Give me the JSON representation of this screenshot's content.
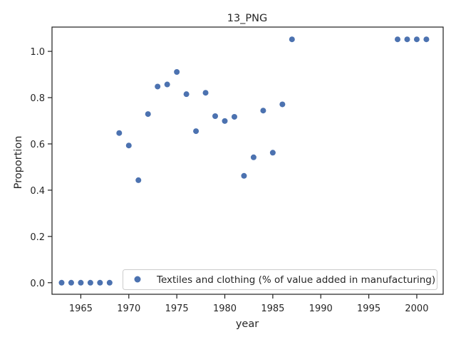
{
  "chart_data": {
    "type": "scatter",
    "title": "13_PNG",
    "xlabel": "year",
    "ylabel": "Proportion",
    "xlim": [
      1962.0,
      2002.75
    ],
    "ylim": [
      -0.05,
      1.105
    ],
    "xticks": [
      1965,
      1970,
      1975,
      1980,
      1985,
      1990,
      1995,
      2000
    ],
    "yticks": [
      0.0,
      0.2,
      0.4,
      0.6,
      0.8,
      1.0
    ],
    "xtick_labels": [
      "1965",
      "1970",
      "1975",
      "1980",
      "1985",
      "1990",
      "1995",
      "2000"
    ],
    "ytick_labels": [
      "0.0",
      "0.2",
      "0.4",
      "0.6",
      "0.8",
      "1.0"
    ],
    "grid": false,
    "legend_position": "lower-right",
    "series": [
      {
        "name": "Textiles and clothing (% of value added in manufacturing)",
        "color": "#4c72b0",
        "points": [
          {
            "x": 1963,
            "y": 0.0
          },
          {
            "x": 1964,
            "y": 0.0
          },
          {
            "x": 1965,
            "y": 0.0
          },
          {
            "x": 1966,
            "y": 0.0
          },
          {
            "x": 1967,
            "y": 0.0
          },
          {
            "x": 1968,
            "y": 0.0
          },
          {
            "x": 1969,
            "y": 0.647
          },
          {
            "x": 1970,
            "y": 0.593
          },
          {
            "x": 1971,
            "y": 0.443
          },
          {
            "x": 1972,
            "y": 0.729
          },
          {
            "x": 1973,
            "y": 0.848
          },
          {
            "x": 1974,
            "y": 0.857
          },
          {
            "x": 1975,
            "y": 0.911
          },
          {
            "x": 1976,
            "y": 0.815
          },
          {
            "x": 1977,
            "y": 0.655
          },
          {
            "x": 1978,
            "y": 0.821
          },
          {
            "x": 1979,
            "y": 0.72
          },
          {
            "x": 1980,
            "y": 0.699
          },
          {
            "x": 1981,
            "y": 0.717
          },
          {
            "x": 1982,
            "y": 0.462
          },
          {
            "x": 1983,
            "y": 0.542
          },
          {
            "x": 1984,
            "y": 0.744
          },
          {
            "x": 1985,
            "y": 0.562
          },
          {
            "x": 1986,
            "y": 0.771
          },
          {
            "x": 1987,
            "y": 1.052
          },
          {
            "x": 1998,
            "y": 1.052
          },
          {
            "x": 1999,
            "y": 1.052
          },
          {
            "x": 2000,
            "y": 1.052
          },
          {
            "x": 2001,
            "y": 1.052
          }
        ]
      }
    ]
  }
}
